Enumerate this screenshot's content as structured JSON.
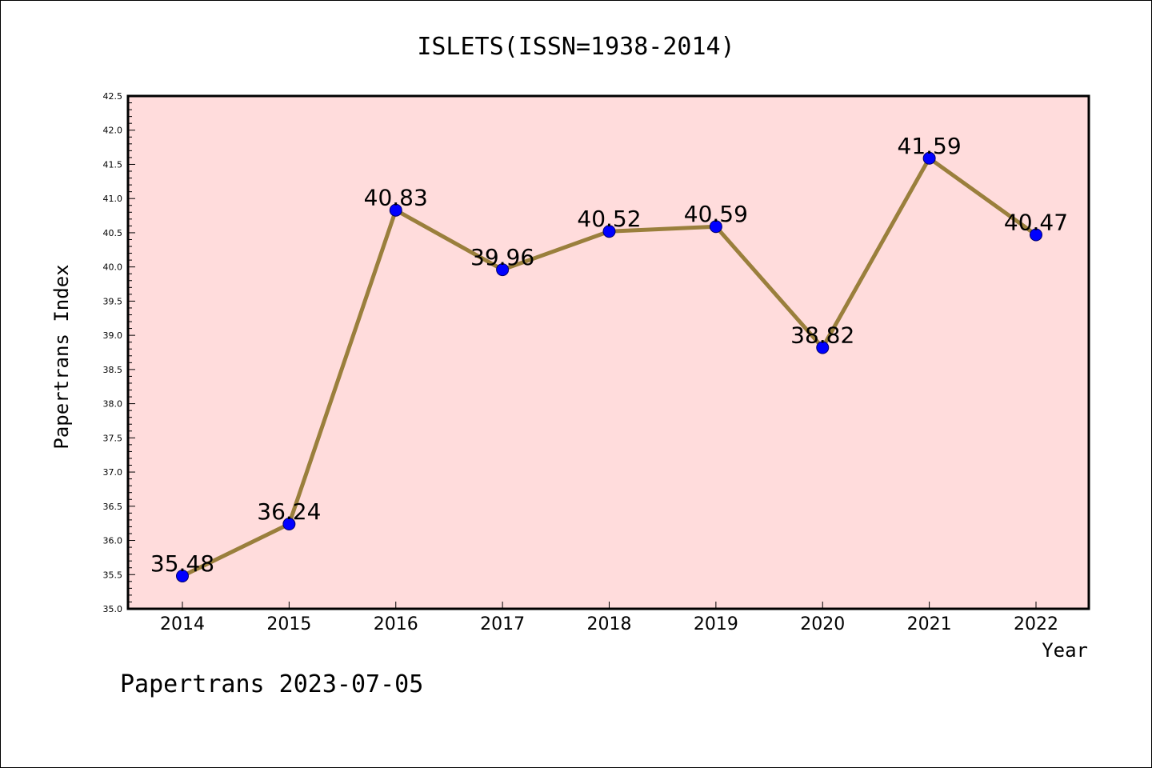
{
  "chart_data": {
    "type": "line",
    "title": "ISLETS(ISSN=1938-2014)",
    "xlabel": "Year",
    "ylabel": "Papertrans Index",
    "footer": "Papertrans 2023-07-05",
    "categories": [
      "2014",
      "2015",
      "2016",
      "2017",
      "2018",
      "2019",
      "2020",
      "2021",
      "2022"
    ],
    "series": [
      {
        "values": [
          35.48,
          36.24,
          40.83,
          39.96,
          40.52,
          40.59,
          38.82,
          41.59,
          40.47
        ],
        "labels": [
          "35.48",
          "36.24",
          "40.83",
          "39.96",
          "40.52",
          "40.59",
          "38.82",
          "41.59",
          "40.47"
        ]
      }
    ],
    "ylim": [
      35.0,
      42.5
    ],
    "yticks": [
      "35.0",
      "35.5",
      "36.0",
      "36.5",
      "37.0",
      "37.5",
      "38.0",
      "38.5",
      "39.0",
      "39.5",
      "40.0",
      "40.5",
      "41.0",
      "41.5",
      "42.0",
      "42.5"
    ],
    "grid": false,
    "legend": "none",
    "colors": {
      "plot_background": "#ffdcdc",
      "line": "#9a7f3c",
      "marker": "#0000ff",
      "axis": "#000000"
    }
  }
}
